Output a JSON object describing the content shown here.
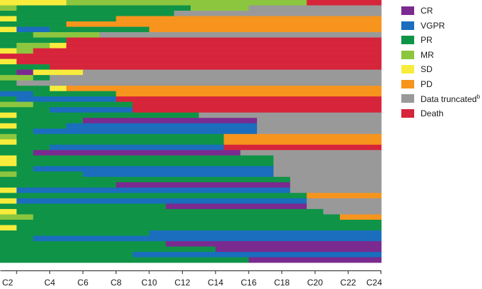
{
  "chart_data": {
    "type": "swimmer",
    "title": "",
    "xlabel": "",
    "ylabel": "",
    "x_ticks": [
      "C2",
      "C4",
      "C6",
      "C8",
      "C10",
      "C12",
      "C14",
      "C16",
      "C18",
      "C20",
      "C22",
      "C24"
    ],
    "xlim": [
      1,
      24
    ],
    "legend_position": "right",
    "statuses": [
      {
        "key": "CR",
        "label": "CR",
        "color": "#7b2a90"
      },
      {
        "key": "VGPR",
        "label": "VGPR",
        "color": "#1a6ebd"
      },
      {
        "key": "PR",
        "label": "PR",
        "color": "#0f9447"
      },
      {
        "key": "MR",
        "label": "MR",
        "color": "#8cc63f"
      },
      {
        "key": "SD",
        "label": "SD",
        "color": "#f7ec3c"
      },
      {
        "key": "PD",
        "label": "PD",
        "color": "#f7941d"
      },
      {
        "key": "DT",
        "label": "Data truncated",
        "sup": "b",
        "color": "#999999"
      },
      {
        "key": "D",
        "label": "Death",
        "color": "#d6243b"
      }
    ],
    "patients": [
      {
        "row": 1,
        "segments": [
          [
            "SD",
            1,
            5
          ],
          [
            "MR",
            5,
            19.5
          ],
          [
            "D",
            19.5,
            24
          ]
        ]
      },
      {
        "row": 2,
        "segments": [
          [
            "MR",
            1,
            2
          ],
          [
            "PR",
            2,
            12.5
          ],
          [
            "MR",
            12.5,
            16
          ],
          [
            "DT",
            16,
            24
          ]
        ]
      },
      {
        "row": 3,
        "segments": [
          [
            "PR",
            1,
            11.5
          ],
          [
            "DT",
            11.5,
            24
          ]
        ]
      },
      {
        "row": 4,
        "segments": [
          [
            "SD",
            1,
            2
          ],
          [
            "PR",
            2,
            8
          ],
          [
            "PD",
            8,
            9
          ],
          [
            "PD",
            9,
            24
          ]
        ]
      },
      {
        "row": 5,
        "segments": [
          [
            "PR",
            1,
            5
          ],
          [
            "PD",
            5,
            10.5
          ],
          [
            "PD",
            10.5,
            24
          ]
        ]
      },
      {
        "row": 6,
        "segments": [
          [
            "SD",
            1,
            2
          ],
          [
            "VGPR",
            2,
            4
          ],
          [
            "PR",
            4,
            10
          ],
          [
            "PD",
            10,
            24
          ]
        ]
      },
      {
        "row": 7,
        "segments": [
          [
            "PR",
            1,
            3
          ],
          [
            "MR",
            3,
            7
          ],
          [
            "DT",
            7,
            24
          ]
        ]
      },
      {
        "row": 8,
        "segments": [
          [
            "PR",
            1,
            5
          ],
          [
            "D",
            5,
            24
          ]
        ]
      },
      {
        "row": 9,
        "segments": [
          [
            "PR",
            1,
            2
          ],
          [
            "MR",
            2,
            4
          ],
          [
            "SD",
            4,
            5
          ],
          [
            "D",
            5,
            24
          ]
        ]
      },
      {
        "row": 10,
        "segments": [
          [
            "SD",
            1,
            2
          ],
          [
            "MR",
            2,
            3
          ],
          [
            "D",
            3,
            24
          ]
        ]
      },
      {
        "row": 11,
        "segments": [
          [
            "D",
            1,
            24
          ]
        ]
      },
      {
        "row": 12,
        "segments": [
          [
            "SD",
            1,
            2
          ],
          [
            "D",
            2,
            24
          ]
        ]
      },
      {
        "row": 13,
        "segments": [
          [
            "PR",
            1,
            4
          ],
          [
            "D",
            4,
            24
          ]
        ]
      },
      {
        "row": 14,
        "segments": [
          [
            "PR",
            1,
            2
          ],
          [
            "CR",
            2,
            3
          ],
          [
            "SD",
            3,
            6
          ],
          [
            "DT",
            6,
            24
          ]
        ]
      },
      {
        "row": 15,
        "segments": [
          [
            "MR",
            1,
            3
          ],
          [
            "PR",
            3,
            4
          ],
          [
            "DT",
            4,
            24
          ]
        ]
      },
      {
        "row": 16,
        "segments": [
          [
            "PR",
            1,
            2
          ],
          [
            "DT",
            2,
            24
          ]
        ]
      },
      {
        "row": 17,
        "segments": [
          [
            "PR",
            1,
            4
          ],
          [
            "SD",
            4,
            5
          ],
          [
            "PD",
            5,
            24
          ]
        ]
      },
      {
        "row": 18,
        "segments": [
          [
            "VGPR",
            1,
            3
          ],
          [
            "PR",
            3,
            8
          ],
          [
            "PD",
            8,
            24
          ]
        ]
      },
      {
        "row": 19,
        "segments": [
          [
            "PR",
            1,
            2
          ],
          [
            "VGPR",
            2,
            8
          ],
          [
            "D",
            8,
            24
          ]
        ]
      },
      {
        "row": 20,
        "segments": [
          [
            "MR",
            1,
            3
          ],
          [
            "PR",
            3,
            9
          ],
          [
            "D",
            9,
            24
          ]
        ]
      },
      {
        "row": 21,
        "segments": [
          [
            "PR",
            1,
            4
          ],
          [
            "VGPR",
            4,
            9
          ],
          [
            "D",
            9,
            24
          ]
        ]
      },
      {
        "row": 22,
        "segments": [
          [
            "SD",
            1,
            2
          ],
          [
            "PR",
            2,
            13
          ],
          [
            "DT",
            13,
            24
          ]
        ]
      },
      {
        "row": 23,
        "segments": [
          [
            "PR",
            1,
            6
          ],
          [
            "CR",
            6,
            16.5
          ],
          [
            "DT",
            16.5,
            24
          ]
        ]
      },
      {
        "row": 24,
        "segments": [
          [
            "SD",
            1,
            2
          ],
          [
            "PR",
            2,
            5
          ],
          [
            "VGPR",
            5,
            16.5
          ],
          [
            "DT",
            16.5,
            24
          ]
        ]
      },
      {
        "row": 25,
        "segments": [
          [
            "PR",
            1,
            3
          ],
          [
            "VGPR",
            3,
            16.5
          ],
          [
            "DT",
            16.5,
            24
          ]
        ]
      },
      {
        "row": 26,
        "segments": [
          [
            "MR",
            1,
            2
          ],
          [
            "PR",
            2,
            14.5
          ],
          [
            "PD",
            14.5,
            24
          ]
        ]
      },
      {
        "row": 27,
        "segments": [
          [
            "SD",
            1,
            2
          ],
          [
            "PR",
            2,
            14.5
          ],
          [
            "PD",
            14.5,
            24
          ]
        ]
      },
      {
        "row": 28,
        "segments": [
          [
            "PR",
            1,
            4
          ],
          [
            "VGPR",
            4,
            14.5
          ],
          [
            "D",
            14.5,
            24
          ]
        ]
      },
      {
        "row": 29,
        "segments": [
          [
            "PR",
            1,
            3
          ],
          [
            "CR",
            3,
            15.5
          ],
          [
            "DT",
            15.5,
            24
          ]
        ]
      },
      {
        "row": 30,
        "segments": [
          [
            "SD",
            1,
            2
          ],
          [
            "PR",
            2,
            17.5
          ],
          [
            "DT",
            17.5,
            24
          ]
        ]
      },
      {
        "row": 31,
        "segments": [
          [
            "SD",
            1,
            2
          ],
          [
            "PR",
            2,
            17.5
          ],
          [
            "DT",
            17.5,
            24
          ]
        ]
      },
      {
        "row": 32,
        "segments": [
          [
            "PR",
            1,
            3
          ],
          [
            "VGPR",
            3,
            17.5
          ],
          [
            "DT",
            17.5,
            24
          ]
        ]
      },
      {
        "row": 33,
        "segments": [
          [
            "MR",
            1,
            2
          ],
          [
            "PR",
            2,
            6
          ],
          [
            "VGPR",
            6,
            17.5
          ],
          [
            "DT",
            17.5,
            24
          ]
        ]
      },
      {
        "row": 34,
        "segments": [
          [
            "PR",
            1,
            18.5
          ],
          [
            "DT",
            18.5,
            24
          ]
        ]
      },
      {
        "row": 35,
        "segments": [
          [
            "PR",
            1,
            8
          ],
          [
            "CR",
            8,
            18.5
          ],
          [
            "DT",
            18.5,
            24
          ]
        ]
      },
      {
        "row": 36,
        "segments": [
          [
            "SD",
            1,
            2
          ],
          [
            "VGPR",
            2,
            18.5
          ],
          [
            "DT",
            18.5,
            24
          ]
        ]
      },
      {
        "row": 37,
        "segments": [
          [
            "PR",
            1,
            19.5
          ],
          [
            "PD",
            19.5,
            24
          ]
        ]
      },
      {
        "row": 38,
        "segments": [
          [
            "SD",
            1,
            2
          ],
          [
            "VGPR",
            2,
            19.5
          ],
          [
            "DT",
            19.5,
            24
          ]
        ]
      },
      {
        "row": 39,
        "segments": [
          [
            "PR",
            1,
            11
          ],
          [
            "CR",
            11,
            19.5
          ],
          [
            "DT",
            19.5,
            24
          ]
        ]
      },
      {
        "row": 40,
        "segments": [
          [
            "SD",
            1,
            2
          ],
          [
            "PR",
            2,
            20.5
          ],
          [
            "DT",
            20.5,
            24
          ]
        ]
      },
      {
        "row": 41,
        "segments": [
          [
            "MR",
            1,
            3
          ],
          [
            "PR",
            3,
            21.5
          ],
          [
            "PD",
            21.5,
            24
          ]
        ]
      },
      {
        "row": 42,
        "segments": [
          [
            "PR",
            1,
            24
          ]
        ]
      },
      {
        "row": 43,
        "segments": [
          [
            "SD",
            1,
            2
          ],
          [
            "PR",
            2,
            24
          ]
        ]
      },
      {
        "row": 44,
        "segments": [
          [
            "PR",
            1,
            10
          ],
          [
            "VGPR",
            10,
            24
          ]
        ]
      },
      {
        "row": 45,
        "segments": [
          [
            "PR",
            1,
            3
          ],
          [
            "VGPR",
            3,
            24
          ]
        ]
      },
      {
        "row": 46,
        "segments": [
          [
            "PR",
            1,
            11
          ],
          [
            "CR",
            11,
            24
          ]
        ]
      },
      {
        "row": 47,
        "segments": [
          [
            "PR",
            1,
            14
          ],
          [
            "CR",
            14,
            24
          ]
        ]
      },
      {
        "row": 48,
        "segments": [
          [
            "PR",
            1,
            9
          ],
          [
            "VGPR",
            9,
            24
          ]
        ]
      },
      {
        "row": 49,
        "segments": [
          [
            "PR",
            1,
            16
          ],
          [
            "CR",
            16,
            24
          ]
        ]
      }
    ]
  }
}
